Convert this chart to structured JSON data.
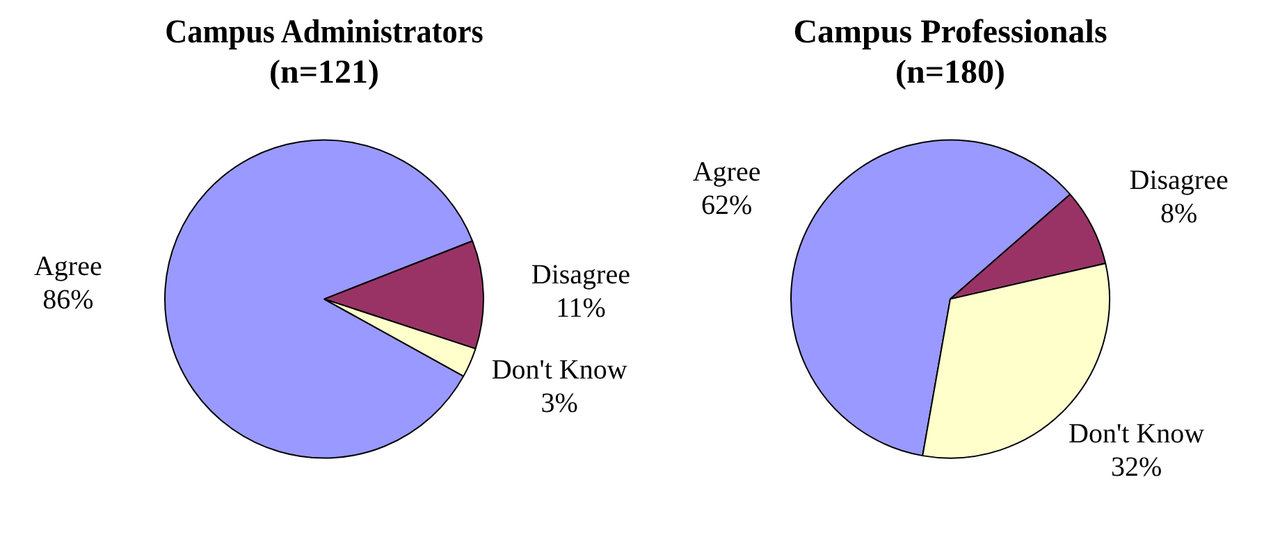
{
  "chart_data": [
    {
      "type": "pie",
      "title": "Campus Administrators (n=121)",
      "categories": [
        "Agree",
        "Disagree",
        "Don't Know"
      ],
      "values": [
        86,
        11,
        3
      ],
      "value_labels": [
        "86%",
        "11%",
        "3%"
      ],
      "colors": [
        "#9999ff",
        "#993366",
        "#ffffcc"
      ],
      "legend": false
    },
    {
      "type": "pie",
      "title": "Campus Professionals (n=180)",
      "categories": [
        "Agree",
        "Disagree",
        "Don't Know"
      ],
      "values": [
        62,
        8,
        32
      ],
      "value_labels": [
        "62%",
        "8%",
        "32%"
      ],
      "colors": [
        "#9999ff",
        "#993366",
        "#ffffcc"
      ],
      "legend": false
    }
  ]
}
